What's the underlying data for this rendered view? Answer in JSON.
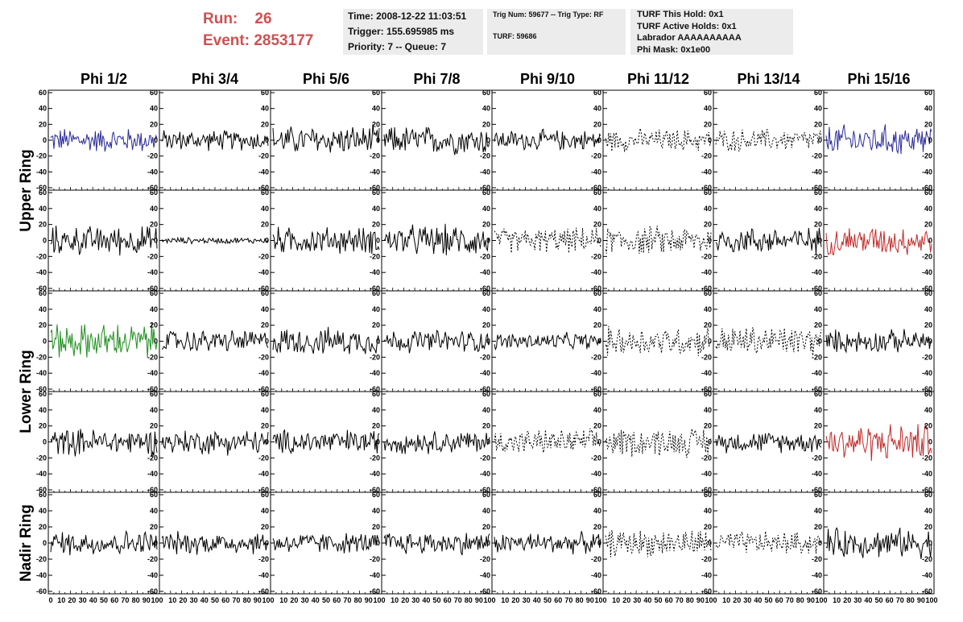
{
  "header": {
    "run_label": "Run:",
    "run_value": "26",
    "event_label": "Event:",
    "event_value": "2853177"
  },
  "info1": {
    "time": "Time: 2008-12-22 11:03:51",
    "trigger": "Trigger: 155.695985 ms",
    "priority": "Priority: 7 -- Queue: 7"
  },
  "info2": {
    "trig": "Trig Num: 59677 -- Trig Type: RF",
    "turf": "TURF: 59686"
  },
  "info3": {
    "hold": "TURF This Hold: 0x1",
    "active": "TURF Active Holds: 0x1",
    "labrador": "Labrador AAAAAAAAAA",
    "phimask": "Phi Mask: 0x1e00"
  },
  "colors": {
    "black": "#000000",
    "blue": "#2a2a9a",
    "red": "#c02828",
    "green": "#1f8f1f"
  },
  "chart_data": {
    "type": "line",
    "columns": [
      "Phi 1/2",
      "Phi 3/4",
      "Phi 5/6",
      "Phi 7/8",
      "Phi 9/10",
      "Phi 11/12",
      "Phi 13/14",
      "Phi 15/16"
    ],
    "ring_labels": [
      "Upper Ring",
      "Lower Ring",
      "Nadir Ring"
    ],
    "xlim": [
      0,
      100
    ],
    "ylim": [
      -60,
      60
    ],
    "xticks": [
      0,
      10,
      20,
      30,
      40,
      50,
      60,
      70,
      80,
      90,
      100
    ],
    "yticks": [
      -60,
      -40,
      -20,
      0,
      20,
      40,
      60
    ],
    "panels": [
      [
        {
          "style": "blue",
          "amp": 12
        },
        {
          "style": "solid",
          "amp": 10
        },
        {
          "style": "solid",
          "amp": 14
        },
        {
          "style": "solid",
          "amp": 14
        },
        {
          "style": "solid",
          "amp": 10
        },
        {
          "style": "dotted",
          "amp": 11
        },
        {
          "style": "dotted",
          "amp": 11
        },
        {
          "style": "blue",
          "amp": 15
        }
      ],
      [
        {
          "style": "solid",
          "amp": 14
        },
        {
          "style": "solid",
          "amp": 3
        },
        {
          "style": "solid",
          "amp": 13
        },
        {
          "style": "solid",
          "amp": 15
        },
        {
          "style": "dotted",
          "amp": 12
        },
        {
          "style": "dotted",
          "amp": 14
        },
        {
          "style": "solid",
          "amp": 13
        },
        {
          "style": "red",
          "amp": 14
        }
      ],
      [
        {
          "style": "green",
          "amp": 17
        },
        {
          "style": "solid",
          "amp": 11
        },
        {
          "style": "solid",
          "amp": 13
        },
        {
          "style": "solid",
          "amp": 11
        },
        {
          "style": "solid",
          "amp": 8
        },
        {
          "style": "dotted",
          "amp": 14
        },
        {
          "style": "dotted",
          "amp": 15
        },
        {
          "style": "solid",
          "amp": 11
        }
      ],
      [
        {
          "style": "solid",
          "amp": 13
        },
        {
          "style": "solid",
          "amp": 12
        },
        {
          "style": "solid",
          "amp": 12
        },
        {
          "style": "solid",
          "amp": 11
        },
        {
          "style": "dotted",
          "amp": 12
        },
        {
          "style": "dotted",
          "amp": 14
        },
        {
          "style": "solid",
          "amp": 10
        },
        {
          "style": "red",
          "amp": 18
        }
      ],
      [
        {
          "style": "solid",
          "amp": 12
        },
        {
          "style": "solid",
          "amp": 11
        },
        {
          "style": "solid",
          "amp": 10
        },
        {
          "style": "solid",
          "amp": 11
        },
        {
          "style": "solid",
          "amp": 10
        },
        {
          "style": "dotted",
          "amp": 13
        },
        {
          "style": "dotted",
          "amp": 11
        },
        {
          "style": "solid",
          "amp": 14
        }
      ]
    ]
  }
}
